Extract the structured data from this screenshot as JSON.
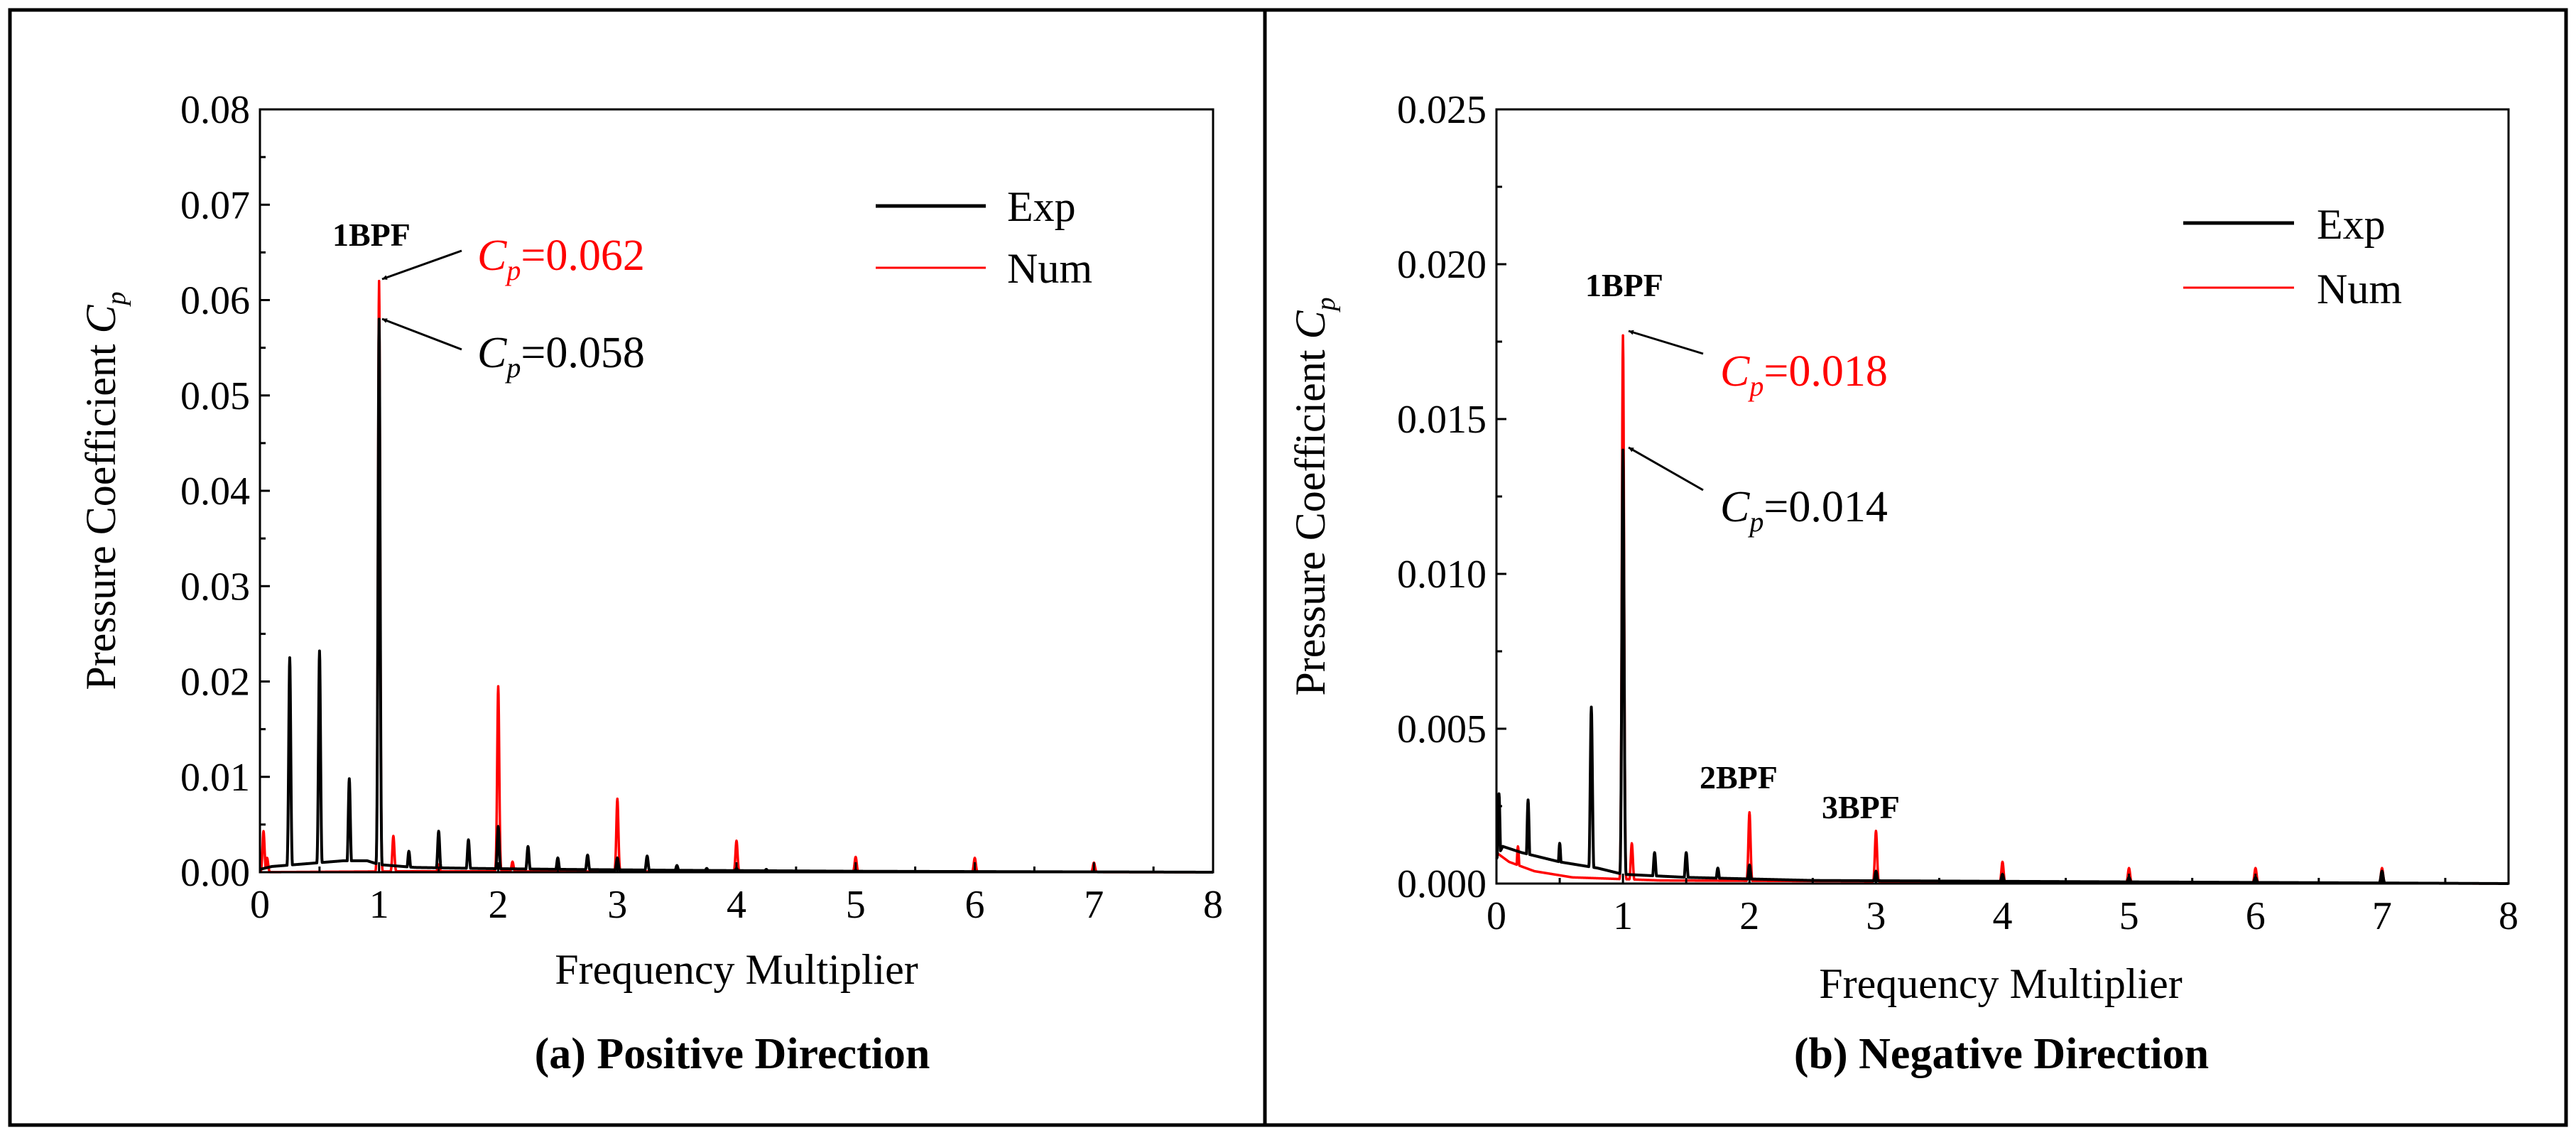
{
  "chart_data": [
    {
      "type": "line",
      "caption": "(a) Positive Direction",
      "xlabel": "Frequency Multiplier",
      "ylabel_main": "Pressure Coefficient ",
      "ylabel_var": "C",
      "ylabel_sub": "p",
      "xlim": [
        0,
        8
      ],
      "ylim": [
        0,
        0.08
      ],
      "xticks": [
        "0",
        "1",
        "2",
        "3",
        "4",
        "5",
        "6",
        "7",
        "8"
      ],
      "yticks": [
        "0.00",
        "0.01",
        "0.02",
        "0.03",
        "0.04",
        "0.05",
        "0.06",
        "0.07",
        "0.08"
      ],
      "legend": [
        {
          "name": "Exp",
          "color": "#000000"
        },
        {
          "name": "Num",
          "color": "#ff0000"
        }
      ],
      "series": [
        {
          "name": "Exp",
          "color": "#000000",
          "noise": [
            [
              0.0,
              0.0003
            ],
            [
              0.1,
              0.0006
            ],
            [
              0.3,
              0.0008
            ],
            [
              0.5,
              0.001
            ],
            [
              0.7,
              0.0012
            ],
            [
              0.9,
              0.0012
            ],
            [
              1.0,
              0.0008
            ],
            [
              1.3,
              0.0005
            ],
            [
              1.8,
              0.0004
            ],
            [
              2.5,
              0.0003
            ],
            [
              3.5,
              0.0002
            ],
            [
              5.0,
              0.0001
            ],
            [
              8.0,
              0.0
            ]
          ],
          "peaks": [
            [
              0.25,
              0.0225
            ],
            [
              0.5,
              0.0232
            ],
            [
              0.75,
              0.0098
            ],
            [
              1.0,
              0.058
            ],
            [
              1.25,
              0.0022
            ],
            [
              1.5,
              0.0043
            ],
            [
              1.75,
              0.0034
            ],
            [
              2.0,
              0.0048
            ],
            [
              2.25,
              0.0027
            ],
            [
              2.5,
              0.0015
            ],
            [
              2.75,
              0.0018
            ],
            [
              3.0,
              0.0015
            ],
            [
              3.25,
              0.0017
            ],
            [
              3.5,
              0.0007
            ],
            [
              3.75,
              0.0004
            ],
            [
              4.0,
              0.0004
            ],
            [
              4.25,
              0.0003
            ],
            [
              5.0,
              0.0002
            ]
          ]
        },
        {
          "name": "Num",
          "color": "#ff0000",
          "noise": [
            [
              0.0,
              0.0
            ],
            [
              1.3,
              0.0001
            ],
            [
              8.0,
              0.0
            ]
          ],
          "peaks": [
            [
              0.03,
              0.0043
            ],
            [
              0.06,
              0.0015
            ],
            [
              1.0,
              0.062
            ],
            [
              1.12,
              0.0038
            ],
            [
              1.5,
              0.0008
            ],
            [
              2.0,
              0.0195
            ],
            [
              2.12,
              0.0011
            ],
            [
              3.0,
              0.0077
            ],
            [
              4.0,
              0.0033
            ],
            [
              5.0,
              0.0016
            ],
            [
              6.0,
              0.0015
            ],
            [
              7.0,
              0.001
            ]
          ]
        }
      ],
      "annotations": {
        "bpf_label": "1BPF",
        "num_cp": {
          "var": "C",
          "sub": "p",
          "value": "=0.062",
          "color": "#ff0000",
          "x": 1.0,
          "y": 0.062
        },
        "exp_cp": {
          "var": "C",
          "sub": "p",
          "value": "=0.058",
          "color": "#000000",
          "x": 1.0,
          "y": 0.058
        }
      }
    },
    {
      "type": "line",
      "caption": "(b) Negative Direction",
      "xlabel": "Frequency Multiplier",
      "ylabel_main": "Pressure Coefficient ",
      "ylabel_var": "C",
      "ylabel_sub": "p",
      "xlim": [
        0,
        8
      ],
      "ylim": [
        0,
        0.025
      ],
      "xticks": [
        "0",
        "1",
        "2",
        "3",
        "4",
        "5",
        "6",
        "7",
        "8"
      ],
      "yticks": [
        "0.000",
        "0.005",
        "0.010",
        "0.015",
        "0.020",
        "0.025"
      ],
      "legend": [
        {
          "name": "Exp",
          "color": "#000000"
        },
        {
          "name": "Num",
          "color": "#ff0000"
        }
      ],
      "series": [
        {
          "name": "Exp",
          "color": "#000000",
          "noise": [
            [
              0.0,
              0.0008
            ],
            [
              0.05,
              0.0012
            ],
            [
              0.2,
              0.001
            ],
            [
              0.5,
              0.0007
            ],
            [
              0.8,
              0.0005
            ],
            [
              1.0,
              0.0003
            ],
            [
              1.5,
              0.0002
            ],
            [
              2.5,
              0.0001
            ],
            [
              8.0,
              0.0
            ]
          ],
          "peaks": [
            [
              0.02,
              0.0029
            ],
            [
              0.25,
              0.0027
            ],
            [
              0.5,
              0.0013
            ],
            [
              0.75,
              0.0057
            ],
            [
              1.0,
              0.014
            ],
            [
              1.25,
              0.001
            ],
            [
              1.5,
              0.001
            ],
            [
              1.75,
              0.0005
            ],
            [
              2.0,
              0.0006
            ],
            [
              3.0,
              0.0004
            ],
            [
              4.0,
              0.0003
            ],
            [
              5.0,
              0.0002
            ],
            [
              6.0,
              0.0002
            ],
            [
              7.0,
              0.0004
            ]
          ]
        },
        {
          "name": "Num",
          "color": "#ff0000",
          "noise": [
            [
              0.0,
              0.001
            ],
            [
              0.1,
              0.0007
            ],
            [
              0.3,
              0.0004
            ],
            [
              0.6,
              0.0002
            ],
            [
              1.3,
              0.0001
            ],
            [
              8.0,
              0.0
            ]
          ],
          "peaks": [
            [
              0.17,
              0.0012
            ],
            [
              1.0,
              0.0177
            ],
            [
              1.07,
              0.0013
            ],
            [
              2.0,
              0.0023
            ],
            [
              3.0,
              0.0017
            ],
            [
              4.0,
              0.0007
            ],
            [
              5.0,
              0.0005
            ],
            [
              6.0,
              0.0005
            ],
            [
              7.0,
              0.0005
            ]
          ]
        }
      ],
      "annotations": {
        "bpf_label": "1BPF",
        "bpf2_label": "2BPF",
        "bpf3_label": "3BPF",
        "num_cp": {
          "var": "C",
          "sub": "p",
          "value": "=0.018",
          "color": "#ff0000",
          "x": 1.0,
          "y": 0.0177
        },
        "exp_cp": {
          "var": "C",
          "sub": "p",
          "value": "=0.014",
          "color": "#000000",
          "x": 1.0,
          "y": 0.014
        }
      }
    }
  ]
}
